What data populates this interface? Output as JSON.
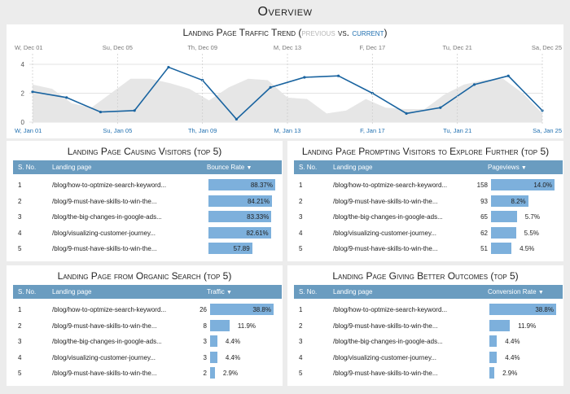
{
  "page_title": "Overview",
  "trend": {
    "title_main": "Landing Page Traffic Trend (",
    "title_prev": "previous",
    "title_vs": " vs. ",
    "title_cur": "current",
    "title_end": ")",
    "colors": {
      "current": "#1a64a0",
      "previous": "#e6e6e6"
    }
  },
  "chart_data": {
    "type": "line",
    "y_ticks": [
      0,
      2,
      4
    ],
    "ylim": [
      0,
      4
    ],
    "prev_x_labels": [
      "W, Dec 01",
      "Su, Dec 05",
      "Th, Dec 09",
      "M, Dec 13",
      "F, Dec 17",
      "Tu, Dec 21",
      "Sa, Dec 25"
    ],
    "x_labels": [
      "W, Jan 01",
      "Su, Jan 05",
      "Th, Jan 09",
      "M, Jan 13",
      "F, Jan 17",
      "Tu, Jan 21",
      "Sa, Jan 25"
    ],
    "series": [
      {
        "values": [
          2.1,
          1.7,
          0.7,
          0.8,
          3.8,
          2.9,
          0.2,
          2.4,
          3.1,
          3.2,
          2.0,
          0.6,
          1.0,
          2.6,
          3.2,
          0.8
        ]
      },
      {
        "values": [
          2.6,
          2.3,
          1.3,
          1.0,
          2.0,
          3.0,
          3.0,
          2.7,
          2.3,
          1.5,
          2.4,
          3.0,
          2.9,
          1.7,
          1.6,
          0.6,
          0.8,
          1.6,
          1.0,
          0.9,
          0.9,
          1.9,
          2.6,
          2.9,
          3.0,
          2.0,
          0.6
        ]
      }
    ]
  },
  "tables": [
    {
      "title": "Landing Page Causing Visitors (top 5)",
      "col_sno": "S. No.",
      "col_page": "Landing page",
      "col_metric": "Bounce Rate",
      "show_count": false,
      "rows": [
        {
          "sno": "1",
          "page": "/blog/how-to-optmize-search-keyword...",
          "count": "",
          "label": "88.37%",
          "pct": 88.37
        },
        {
          "sno": "2",
          "page": "/blog/9-must-have-skills-to-win-the...",
          "count": "",
          "label": "84.21%",
          "pct": 84.21
        },
        {
          "sno": "3",
          "page": "/blog/the-big-changes-in-google-ads...",
          "count": "",
          "label": "83.33%",
          "pct": 83.33
        },
        {
          "sno": "4",
          "page": "/blog/visualizing-customer-journey...",
          "count": "",
          "label": "82.61%",
          "pct": 82.61
        },
        {
          "sno": "5",
          "page": "/blog/9-must-have-skills-to-win-the...",
          "count": "",
          "label": "57.89",
          "pct": 57.89
        }
      ]
    },
    {
      "title": "Landing Page Prompting Visitors to Explore Further (top 5)",
      "col_sno": "S. No.",
      "col_page": "Landing page",
      "col_metric": "Pageviews",
      "show_count": true,
      "rows": [
        {
          "sno": "1",
          "page": "/blog/how-to-optmize-search-keyword...",
          "count": "158",
          "label": "14.0%",
          "pct": 14.0
        },
        {
          "sno": "2",
          "page": "/blog/9-must-have-skills-to-win-the...",
          "count": "93",
          "label": "8.2%",
          "pct": 8.2
        },
        {
          "sno": "3",
          "page": "/blog/the-big-changes-in-google-ads...",
          "count": "65",
          "label": "5.7%",
          "pct": 5.7
        },
        {
          "sno": "4",
          "page": "/blog/visualizing-customer-journey...",
          "count": "62",
          "label": "5.5%",
          "pct": 5.5
        },
        {
          "sno": "5",
          "page": "/blog/9-must-have-skills-to-win-the...",
          "count": "51",
          "label": "4.5%",
          "pct": 4.5
        }
      ]
    },
    {
      "title": "Landing Page from Organic Search (top 5)",
      "col_sno": "S. No.",
      "col_page": "Landing page",
      "col_metric": "Traffic",
      "show_count": true,
      "rows": [
        {
          "sno": "1",
          "page": "/blog/how-to-optmize-search-keyword...",
          "count": "26",
          "label": "38.8%",
          "pct": 38.8
        },
        {
          "sno": "2",
          "page": "/blog/9-must-have-skills-to-win-the...",
          "count": "8",
          "label": "11.9%",
          "pct": 11.9
        },
        {
          "sno": "3",
          "page": "/blog/the-big-changes-in-google-ads...",
          "count": "3",
          "label": "4.4%",
          "pct": 4.4
        },
        {
          "sno": "4",
          "page": "/blog/visualizing-customer-journey...",
          "count": "3",
          "label": "4.4%",
          "pct": 4.4
        },
        {
          "sno": "5",
          "page": "/blog/9-must-have-skills-to-win-the...",
          "count": "2",
          "label": "2.9%",
          "pct": 2.9
        }
      ]
    },
    {
      "title": "Landing Page Giving Better Outcomes (top 5)",
      "col_sno": "S. No.",
      "col_page": "Landing page",
      "col_metric": "Conversion Rate",
      "show_count": false,
      "rows": [
        {
          "sno": "1",
          "page": "/blog/how-to-optmize-search-keyword...",
          "count": "",
          "label": "38.8%",
          "pct": 38.8
        },
        {
          "sno": "2",
          "page": "/blog/9-must-have-skills-to-win-the...",
          "count": "",
          "label": "11.9%",
          "pct": 11.9
        },
        {
          "sno": "3",
          "page": "/blog/the-big-changes-in-google-ads...",
          "count": "",
          "label": "4.4%",
          "pct": 4.4
        },
        {
          "sno": "4",
          "page": "/blog/visualizing-customer-journey...",
          "count": "",
          "label": "4.4%",
          "pct": 4.4
        },
        {
          "sno": "5",
          "page": "/blog/9-must-have-skills-to-win-the...",
          "count": "",
          "label": "2.9%",
          "pct": 2.9
        }
      ]
    }
  ]
}
